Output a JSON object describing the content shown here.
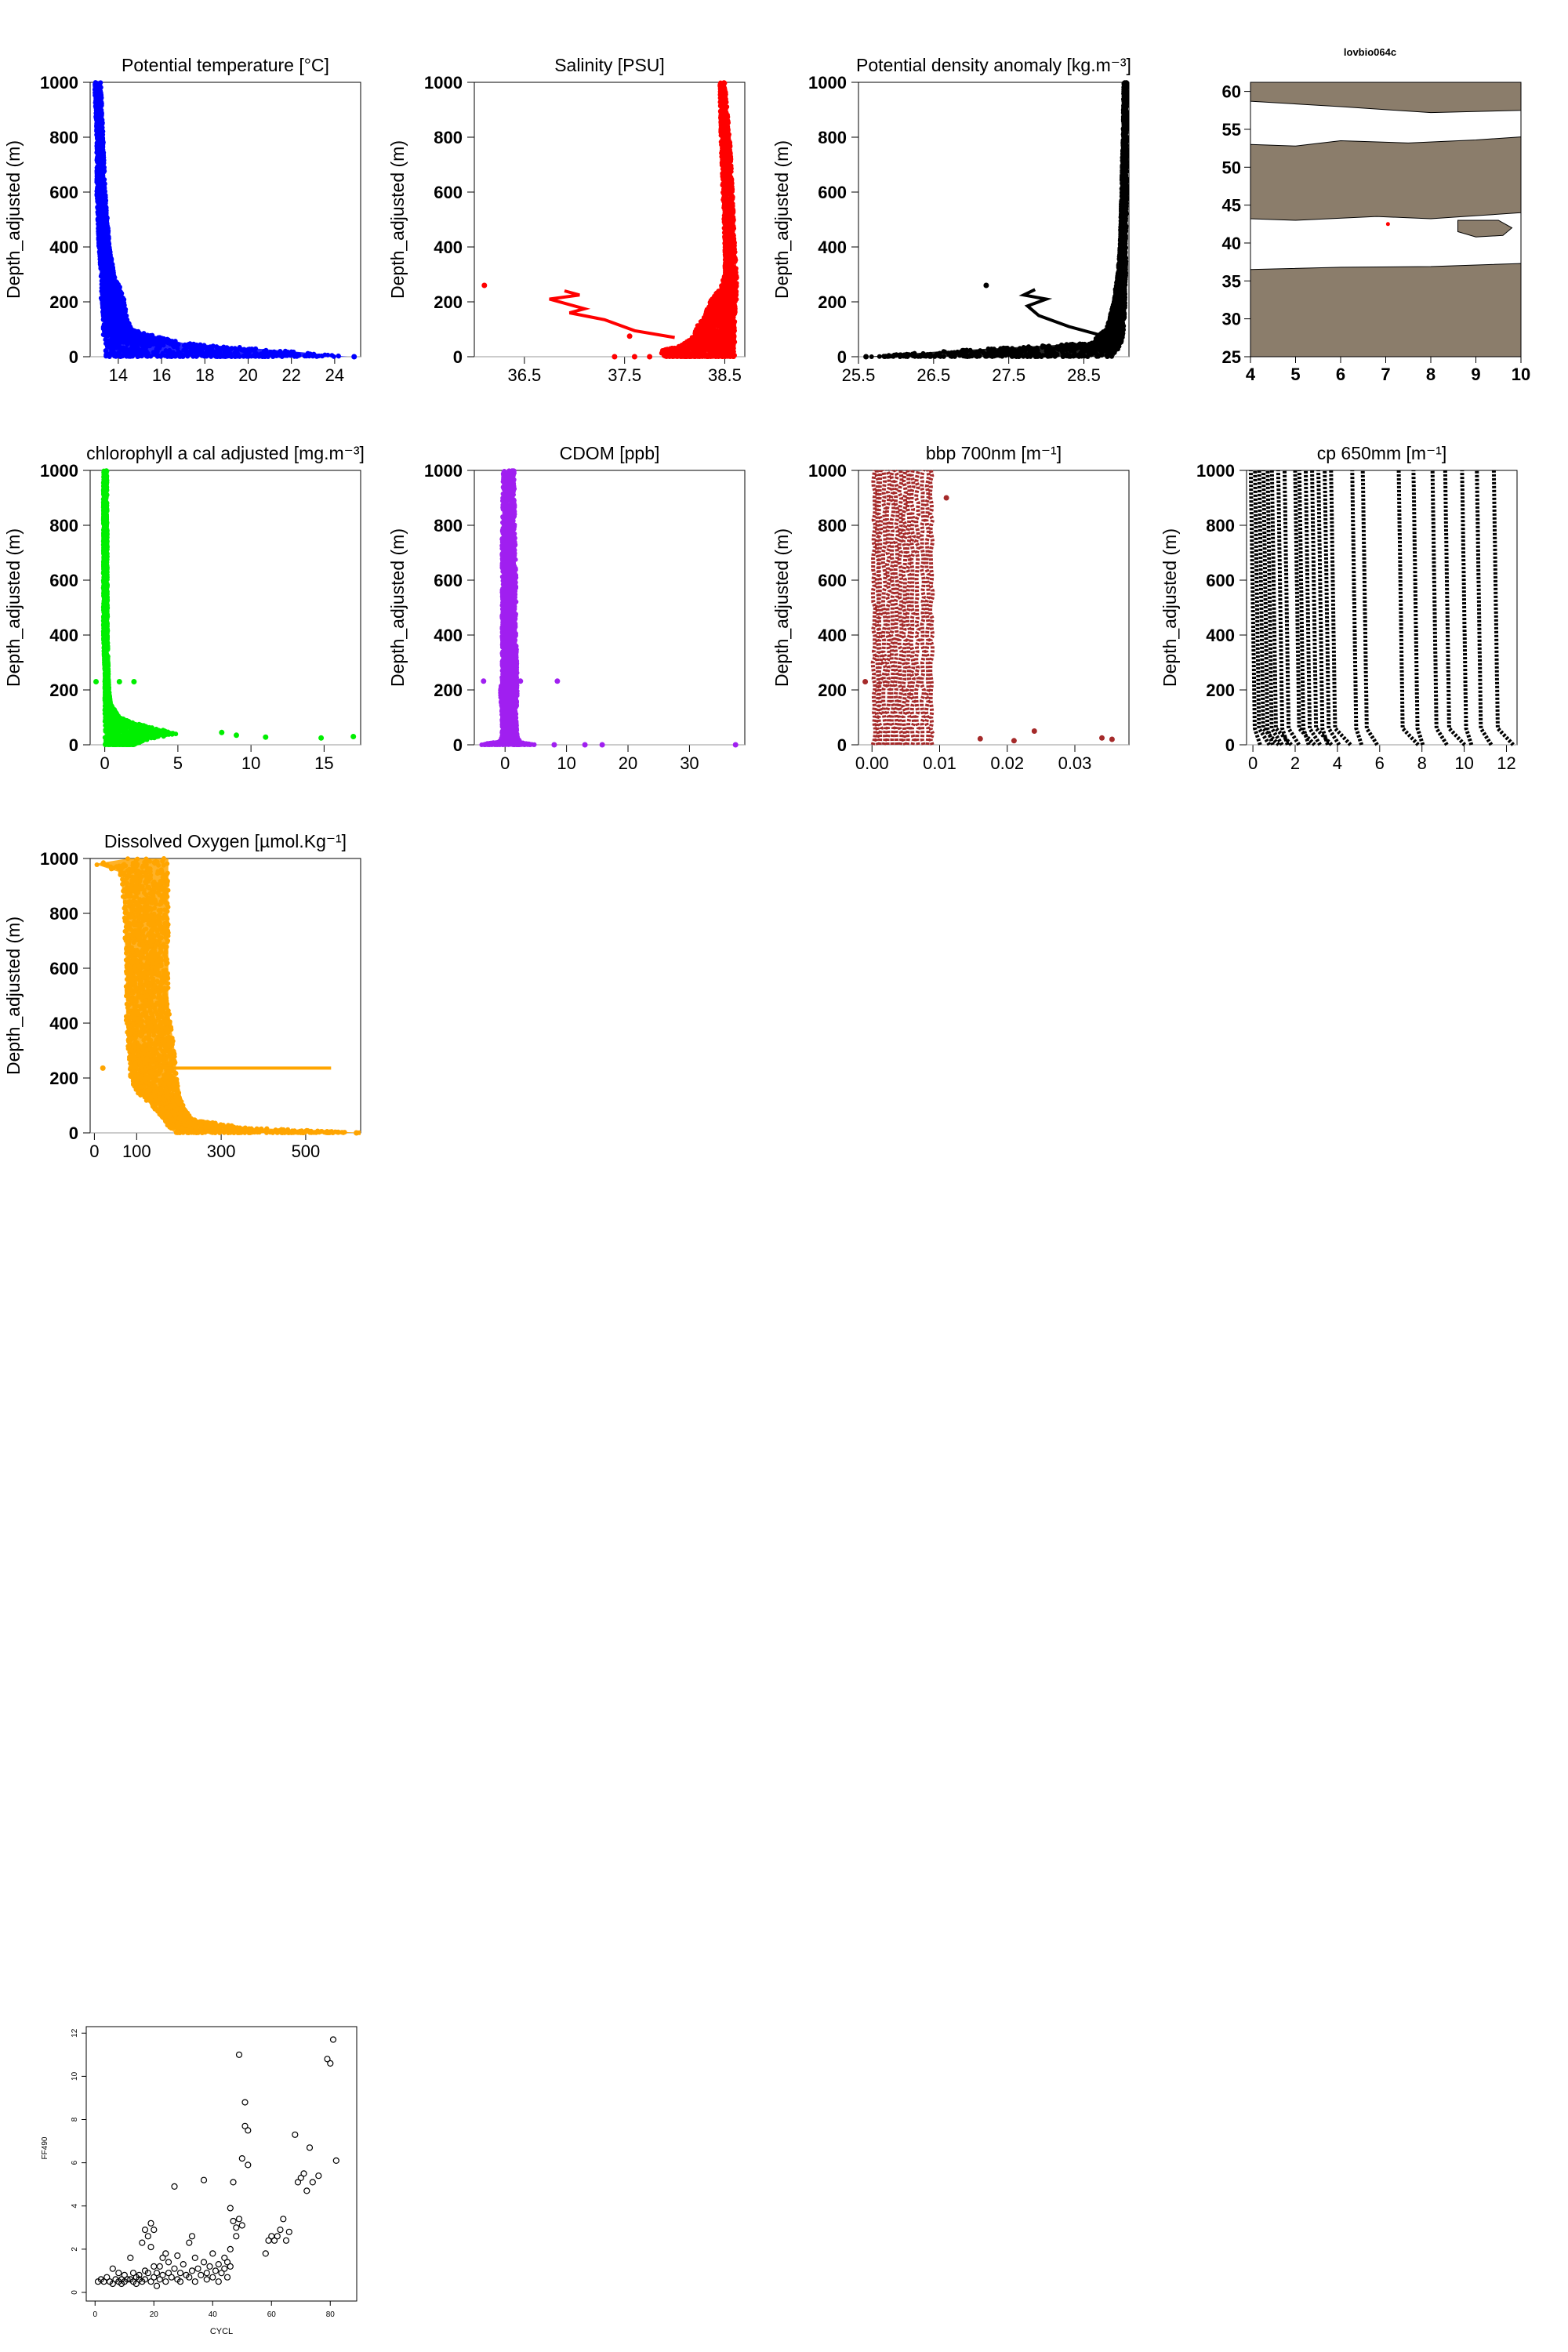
{
  "figure": {
    "y_axis_label": "Depth_adjusted (m)",
    "map_title": "lovbio064c",
    "scatter_xlabel": "CYCL",
    "scatter_ylabel": "FF490"
  },
  "colors": {
    "temperature": "#0000ff",
    "salinity": "#ff0000",
    "density": "#000000",
    "chlorophyll": "#00ee00",
    "cdom": "#a020f0",
    "bbp": "#a52a2a",
    "cp": "#000000",
    "oxygen": "#ffa500",
    "land": "#8b7d6b"
  },
  "chart_data": [
    {
      "id": "temperature",
      "type": "scatter",
      "title": "Potential temperature [°C]",
      "ylabel": "Depth_adjusted (m)",
      "xlim": [
        12.7,
        25.2
      ],
      "ylim": [
        1000,
        0
      ],
      "xticks": [
        "14",
        "16",
        "18",
        "20",
        "22",
        "24"
      ],
      "yticks": [
        "0",
        "200",
        "400",
        "600",
        "800",
        "1000"
      ],
      "profile": {
        "depth": [
          0,
          20,
          50,
          80,
          100,
          150,
          200,
          250,
          300,
          400,
          600,
          800,
          1000
        ],
        "min": [
          13.4,
          13.4,
          13.4,
          13.3,
          13.3,
          13.3,
          13.2,
          13.2,
          13.2,
          13.1,
          13.0,
          13.0,
          12.9
        ],
        "max": [
          24.6,
          22.0,
          17.0,
          15.5,
          14.6,
          14.4,
          14.3,
          14.1,
          13.8,
          13.6,
          13.4,
          13.3,
          13.2
        ]
      },
      "outliers": [
        [
          24.9,
          0
        ]
      ]
    },
    {
      "id": "salinity",
      "type": "scatter",
      "title": "Salinity [PSU]",
      "ylabel": "Depth_adjusted (m)",
      "xlim": [
        36.0,
        38.7
      ],
      "ylim": [
        1000,
        0
      ],
      "xticks": [
        "36.5",
        "37.5",
        "38.5"
      ],
      "yticks": [
        "0",
        "200",
        "400",
        "600",
        "800",
        "1000"
      ],
      "profile": {
        "depth": [
          0,
          20,
          50,
          80,
          100,
          150,
          200,
          250,
          300,
          400,
          600,
          800,
          1000
        ],
        "min": [
          37.9,
          37.85,
          38.1,
          38.2,
          38.2,
          38.3,
          38.35,
          38.45,
          38.5,
          38.5,
          38.48,
          38.46,
          38.45
        ],
        "max": [
          38.6,
          38.6,
          38.6,
          38.6,
          38.6,
          38.6,
          38.62,
          38.62,
          38.62,
          38.6,
          38.58,
          38.55,
          38.5
        ]
      },
      "trace": [
        [
          38.0,
          70
        ],
        [
          37.6,
          95
        ],
        [
          37.3,
          135
        ],
        [
          36.95,
          160
        ],
        [
          37.1,
          175
        ],
        [
          36.75,
          210
        ],
        [
          37.05,
          225
        ],
        [
          36.9,
          240
        ]
      ],
      "outliers": [
        [
          36.1,
          260
        ],
        [
          37.4,
          0
        ],
        [
          37.6,
          0
        ],
        [
          37.75,
          0
        ],
        [
          37.55,
          75
        ]
      ]
    },
    {
      "id": "density",
      "type": "scatter",
      "title": "Potential density anomaly [kg.m⁻³]",
      "ylabel": "Depth_adjusted (m)",
      "xlim": [
        25.5,
        29.1
      ],
      "ylim": [
        1000,
        0
      ],
      "xticks": [
        "25.5",
        "26.5",
        "27.5",
        "28.5"
      ],
      "yticks": [
        "0",
        "200",
        "400",
        "600",
        "800",
        "1000"
      ],
      "profile": {
        "depth": [
          0,
          20,
          50,
          80,
          100,
          150,
          200,
          250,
          300,
          400,
          600,
          800,
          1000
        ],
        "min": [
          25.6,
          26.6,
          28.6,
          28.7,
          28.8,
          28.85,
          28.9,
          28.92,
          28.95,
          28.98,
          29.0,
          29.02,
          29.03
        ],
        "max": [
          28.9,
          28.95,
          29.0,
          29.02,
          29.03,
          29.04,
          29.05,
          29.05,
          29.06,
          29.06,
          29.07,
          29.07,
          29.07
        ]
      },
      "trace": [
        [
          28.7,
          80
        ],
        [
          28.3,
          110
        ],
        [
          27.9,
          150
        ],
        [
          27.75,
          185
        ],
        [
          28.0,
          210
        ],
        [
          27.7,
          225
        ],
        [
          27.85,
          245
        ]
      ],
      "outliers": [
        [
          25.6,
          0
        ],
        [
          27.2,
          260
        ]
      ]
    },
    {
      "id": "map",
      "type": "map",
      "title": "lovbio064c",
      "xlim": [
        4,
        10
      ],
      "ylim": [
        25,
        61.2
      ],
      "xticks": [
        "4",
        "5",
        "6",
        "7",
        "8",
        "9",
        "10"
      ],
      "yticks": [
        "25",
        "30",
        "35",
        "40",
        "45",
        "50",
        "55",
        "60"
      ],
      "track_point": [
        7.05,
        42.5
      ]
    },
    {
      "id": "chlorophyll",
      "type": "scatter",
      "title": "chlorophyll a cal adjusted [mg.m⁻³]",
      "ylabel": "Depth_adjusted (m)",
      "xlim": [
        -1,
        17.5
      ],
      "ylim": [
        1000,
        0
      ],
      "xticks": [
        "0",
        "5",
        "10",
        "15"
      ],
      "yticks": [
        "0",
        "200",
        "400",
        "600",
        "800",
        "1000"
      ],
      "profile": {
        "depth": [
          0,
          20,
          40,
          60,
          80,
          100,
          150,
          200,
          250,
          400,
          1000
        ],
        "min": [
          0,
          0,
          0,
          0,
          0,
          0,
          0,
          0,
          0,
          -0.1,
          -0.1
        ],
        "max": [
          2.0,
          3.0,
          5.0,
          3.5,
          2.0,
          1.0,
          0.4,
          0.3,
          0.25,
          0.2,
          0.15
        ]
      },
      "outliers": [
        [
          17.0,
          30
        ],
        [
          14.8,
          25
        ],
        [
          11.0,
          28
        ],
        [
          9.0,
          35
        ],
        [
          8.0,
          45
        ],
        [
          1.0,
          230
        ],
        [
          2.0,
          230
        ],
        [
          -0.6,
          230
        ]
      ]
    },
    {
      "id": "cdom",
      "type": "scatter",
      "title": "CDOM [ppb]",
      "ylabel": "Depth_adjusted (m)",
      "xlim": [
        -5,
        39
      ],
      "ylim": [
        1000,
        0
      ],
      "xticks": [
        "0",
        "10",
        "20",
        "30"
      ],
      "yticks": [
        "0",
        "200",
        "400",
        "600",
        "800",
        "1000"
      ],
      "profile": {
        "depth": [
          0,
          5,
          10,
          30,
          100,
          200,
          250,
          400,
          600,
          800,
          1000
        ],
        "min": [
          -4.0,
          -3.0,
          -1.0,
          -0.5,
          -0.5,
          -0.8,
          -0.5,
          -0.5,
          -0.5,
          -0.5,
          -0.3
        ],
        "max": [
          5.0,
          3.5,
          2.5,
          2.0,
          1.8,
          2.0,
          2.0,
          1.8,
          1.8,
          1.6,
          1.5
        ]
      },
      "outliers": [
        [
          37.5,
          0
        ],
        [
          15.8,
          0
        ],
        [
          13.0,
          0
        ],
        [
          8.0,
          0
        ],
        [
          -3.5,
          232
        ],
        [
          2.5,
          232
        ],
        [
          8.5,
          232
        ]
      ]
    },
    {
      "id": "bbp",
      "type": "scatter",
      "title": "bbp 700nm [m⁻¹]",
      "ylabel": "Depth_adjusted (m)",
      "xlim": [
        -0.002,
        0.038
      ],
      "ylim": [
        1000,
        0
      ],
      "xticks": [
        "0.00",
        "0.01",
        "0.02",
        "0.03"
      ],
      "yticks": [
        "0",
        "200",
        "400",
        "600",
        "800",
        "1000"
      ],
      "profiles_x": [
        0.0003,
        0.0008,
        0.0012,
        0.0018,
        0.0024,
        0.003,
        0.0036,
        0.0042,
        0.0048,
        0.0054,
        0.006,
        0.0067,
        0.0075,
        0.0082,
        0.0088
      ],
      "outliers": [
        [
          0.0355,
          20
        ],
        [
          0.034,
          25
        ],
        [
          0.024,
          50
        ],
        [
          0.021,
          15
        ],
        [
          0.016,
          22
        ],
        [
          0.011,
          900
        ],
        [
          -0.001,
          230
        ]
      ]
    },
    {
      "id": "cp",
      "type": "scatter",
      "title": "cp 650mm [m⁻¹]",
      "ylabel": "Depth_adjusted (m)",
      "xlim": [
        -0.3,
        12.5
      ],
      "ylim": [
        1000,
        0
      ],
      "xticks": [
        "0",
        "2",
        "4",
        "6",
        "8",
        "10",
        "12"
      ],
      "yticks": [
        "0",
        "200",
        "400",
        "600",
        "800",
        "1000"
      ],
      "profiles_x": [
        0.1,
        0.3,
        0.5,
        0.7,
        0.9,
        1.1,
        1.4,
        1.7,
        2.2,
        2.4,
        2.7,
        3.0,
        3.3,
        3.6,
        3.9,
        4.9,
        5.4,
        7.1,
        7.8,
        8.7,
        9.3,
        10.1,
        10.8,
        11.6
      ],
      "outliers": []
    },
    {
      "id": "oxygen",
      "type": "scatter",
      "title": "Dissolved Oxygen [µmol.Kg⁻¹]",
      "ylabel": "Depth_adjusted (m)",
      "xlim": [
        -10,
        630
      ],
      "ylim": [
        1000,
        0
      ],
      "xticks": [
        "0",
        "100",
        "300",
        "500"
      ],
      "yticks": [
        "0",
        "200",
        "400",
        "600",
        "800",
        "1000"
      ],
      "profile": {
        "depth": [
          0,
          20,
          50,
          100,
          150,
          200,
          300,
          400,
          500,
          600,
          700,
          800,
          900,
          950,
          980,
          1000
        ],
        "min": [
          190,
          175,
          165,
          135,
          100,
          85,
          80,
          75,
          75,
          75,
          72,
          70,
          65,
          60,
          0,
          80
        ],
        "max": [
          640,
          350,
          230,
          210,
          200,
          195,
          190,
          180,
          175,
          175,
          175,
          175,
          175,
          175,
          175,
          175
        ]
      },
      "trace": [
        [
          170,
          236
        ],
        [
          240,
          236
        ],
        [
          340,
          236
        ],
        [
          440,
          236
        ],
        [
          560,
          236
        ]
      ],
      "outliers": [
        [
          20,
          236
        ],
        [
          620,
          0
        ]
      ]
    },
    {
      "id": "ff490",
      "type": "scatter",
      "title": "",
      "xlabel": "CYCL",
      "ylabel": "FF490",
      "xlim": [
        -3,
        89
      ],
      "ylim": [
        -0.4,
        12.3
      ],
      "xticks": [
        "0",
        "20",
        "40",
        "60",
        "80"
      ],
      "yticks": [
        "0",
        "2",
        "4",
        "6",
        "8",
        "10",
        "12"
      ],
      "points": [
        [
          1,
          0.5
        ],
        [
          2,
          0.6
        ],
        [
          3,
          0.5
        ],
        [
          4,
          0.7
        ],
        [
          5,
          0.5
        ],
        [
          6,
          1.1
        ],
        [
          6,
          0.4
        ],
        [
          7,
          0.6
        ],
        [
          8,
          0.5
        ],
        [
          8,
          0.9
        ],
        [
          9,
          0.4
        ],
        [
          9,
          0.6
        ],
        [
          10,
          0.8
        ],
        [
          10,
          0.5
        ],
        [
          11,
          0.6
        ],
        [
          12,
          1.6
        ],
        [
          12,
          0.6
        ],
        [
          13,
          0.9
        ],
        [
          13,
          0.5
        ],
        [
          14,
          0.7
        ],
        [
          14,
          0.4
        ],
        [
          15,
          0.8
        ],
        [
          15,
          0.6
        ],
        [
          16,
          2.3
        ],
        [
          16,
          0.5
        ],
        [
          17,
          2.9
        ],
        [
          17,
          1.0
        ],
        [
          17,
          0.6
        ],
        [
          18,
          2.6
        ],
        [
          18,
          0.9
        ],
        [
          19,
          3.2
        ],
        [
          19,
          2.1
        ],
        [
          19,
          0.5
        ],
        [
          20,
          2.9
        ],
        [
          20,
          1.2
        ],
        [
          20,
          0.7
        ],
        [
          21,
          0.3
        ],
        [
          21,
          0.9
        ],
        [
          22,
          1.2
        ],
        [
          22,
          0.6
        ],
        [
          23,
          1.6
        ],
        [
          23,
          0.8
        ],
        [
          24,
          1.8
        ],
        [
          24,
          0.5
        ],
        [
          25,
          1.4
        ],
        [
          25,
          0.9
        ],
        [
          26,
          0.7
        ],
        [
          27,
          4.9
        ],
        [
          27,
          1.1
        ],
        [
          28,
          0.6
        ],
        [
          28,
          1.7
        ],
        [
          29,
          0.9
        ],
        [
          29,
          0.5
        ],
        [
          30,
          1.3
        ],
        [
          31,
          0.8
        ],
        [
          32,
          2.3
        ],
        [
          32,
          0.7
        ],
        [
          33,
          2.6
        ],
        [
          33,
          1.0
        ],
        [
          34,
          1.6
        ],
        [
          34,
          0.5
        ],
        [
          35,
          1.1
        ],
        [
          36,
          0.8
        ],
        [
          37,
          5.2
        ],
        [
          37,
          1.4
        ],
        [
          38,
          0.9
        ],
        [
          38,
          0.6
        ],
        [
          39,
          1.2
        ],
        [
          40,
          1.8
        ],
        [
          40,
          0.7
        ],
        [
          41,
          1.0
        ],
        [
          42,
          1.3
        ],
        [
          42,
          0.5
        ],
        [
          43,
          0.9
        ],
        [
          44,
          1.6
        ],
        [
          44,
          1.1
        ],
        [
          45,
          1.4
        ],
        [
          45,
          0.7
        ],
        [
          46,
          3.9
        ],
        [
          46,
          2.0
        ],
        [
          46,
          1.2
        ],
        [
          47,
          3.3
        ],
        [
          47,
          5.1
        ],
        [
          48,
          2.6
        ],
        [
          48,
          3.0
        ],
        [
          49,
          3.4
        ],
        [
          49,
          11.0
        ],
        [
          50,
          3.1
        ],
        [
          50,
          6.2
        ],
        [
          51,
          8.8
        ],
        [
          51,
          7.7
        ],
        [
          52,
          7.5
        ],
        [
          52,
          5.9
        ],
        [
          58,
          1.8
        ],
        [
          59,
          2.4
        ],
        [
          60,
          2.6
        ],
        [
          61,
          2.4
        ],
        [
          62,
          2.6
        ],
        [
          63,
          2.9
        ],
        [
          64,
          3.4
        ],
        [
          65,
          2.4
        ],
        [
          66,
          2.8
        ],
        [
          68,
          7.3
        ],
        [
          69,
          5.1
        ],
        [
          70,
          5.3
        ],
        [
          71,
          5.5
        ],
        [
          72,
          4.7
        ],
        [
          73,
          6.7
        ],
        [
          74,
          5.1
        ],
        [
          76,
          5.4
        ],
        [
          79,
          10.8
        ],
        [
          80,
          10.6
        ],
        [
          81,
          11.7
        ],
        [
          82,
          6.1
        ]
      ]
    }
  ]
}
